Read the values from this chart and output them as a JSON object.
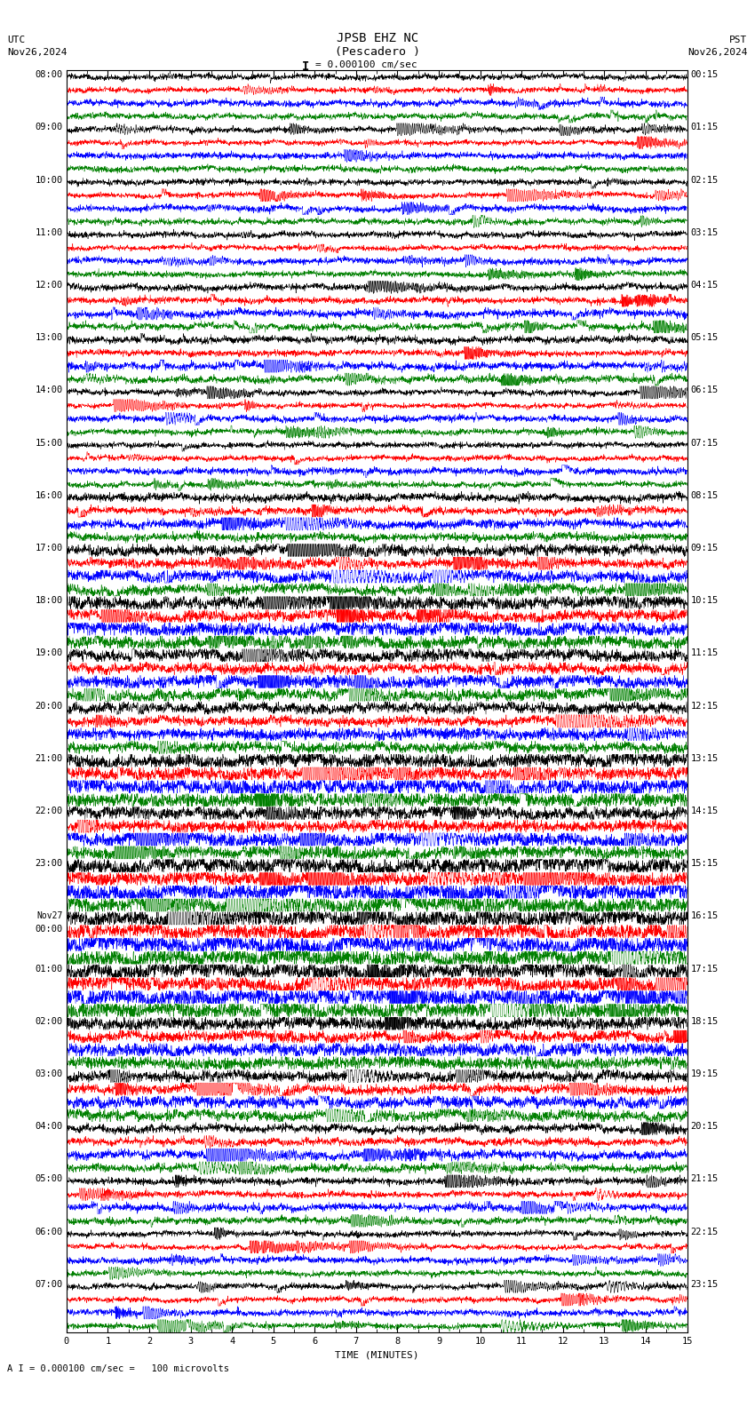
{
  "title_line1": "JPSB EHZ NC",
  "title_line2": "(Pescadero )",
  "scale_text": "I = 0.000100 cm/sec",
  "left_label": "UTC",
  "left_date": "Nov26,2024",
  "right_label": "PST",
  "right_date": "Nov26,2024",
  "bottom_label": "A I = 0.000100 cm/sec =   100 microvolts",
  "xlabel": "TIME (MINUTES)",
  "xticks": [
    0,
    1,
    2,
    3,
    4,
    5,
    6,
    7,
    8,
    9,
    10,
    11,
    12,
    13,
    14,
    15
  ],
  "utc_times": [
    "08:00",
    "09:00",
    "10:00",
    "11:00",
    "12:00",
    "13:00",
    "14:00",
    "15:00",
    "16:00",
    "17:00",
    "18:00",
    "19:00",
    "20:00",
    "21:00",
    "22:00",
    "23:00",
    "Nov27\n00:00",
    "01:00",
    "02:00",
    "03:00",
    "04:00",
    "05:00",
    "06:00",
    "07:00"
  ],
  "pst_times": [
    "00:15",
    "01:15",
    "02:15",
    "03:15",
    "04:15",
    "05:15",
    "06:15",
    "07:15",
    "08:15",
    "09:15",
    "10:15",
    "11:15",
    "12:15",
    "13:15",
    "14:15",
    "15:15",
    "16:15",
    "17:15",
    "18:15",
    "19:15",
    "20:15",
    "21:15",
    "22:15",
    "23:15"
  ],
  "n_hours": 24,
  "n_channels": 4,
  "colors": [
    "black",
    "red",
    "blue",
    "green"
  ],
  "bg_color": "white",
  "minutes": 15,
  "samples": 3000,
  "font_family": "monospace",
  "title_fontsize": 10,
  "label_fontsize": 8,
  "tick_fontsize": 7.5
}
